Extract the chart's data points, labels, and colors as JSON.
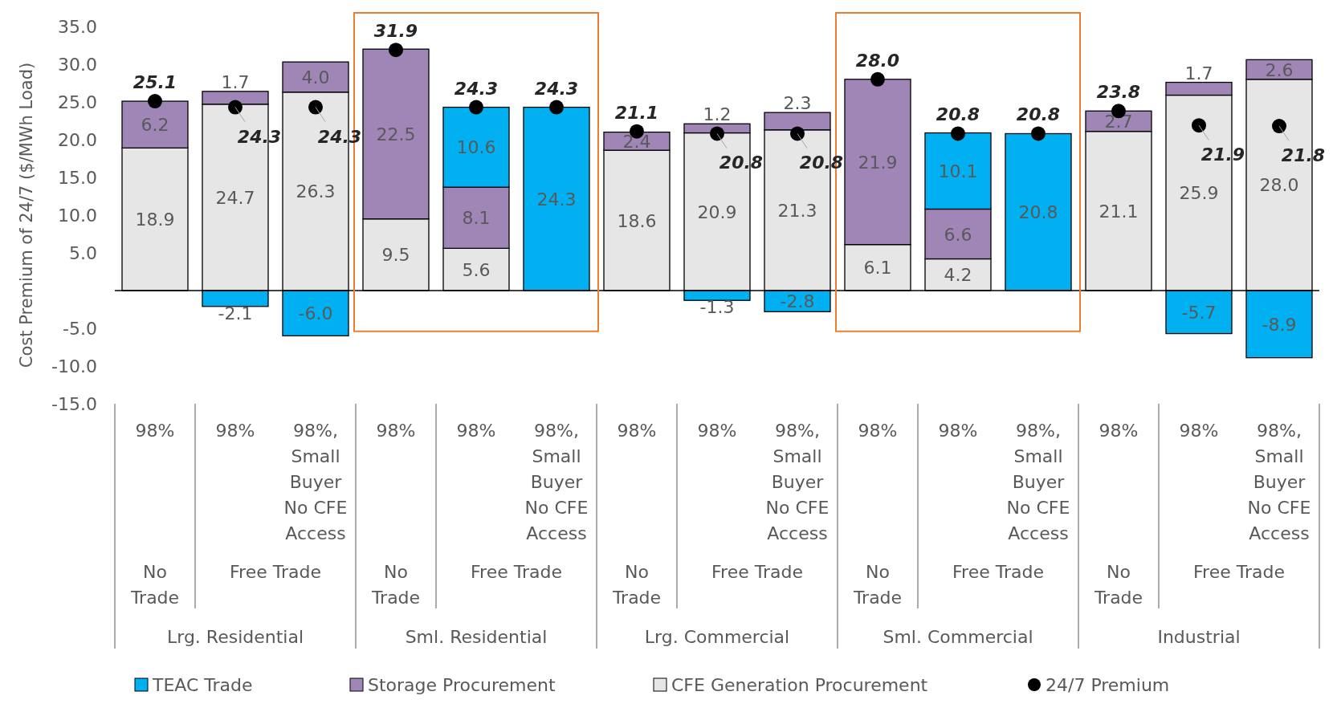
{
  "chart_data": {
    "type": "bar",
    "stacked": true,
    "ylabel": "Cost Premium of 24/7 ($/MWh Load)",
    "categories": [
      "98%",
      "98%",
      "98%, Small Buyer No CFE Access",
      "98%",
      "98%",
      "98%, Small Buyer No CFE Access",
      "98%",
      "98%",
      "98%, Small Buyer No CFE Access",
      "98%",
      "98%",
      "98%, Small Buyer No CFE Access",
      "98%",
      "98%",
      "98%, Small Buyer No CFE Access"
    ],
    "series": [
      {
        "name": "CFE Generation Procurement",
        "color": "#e7e6e6",
        "values": [
          18.9,
          24.7,
          26.3,
          9.5,
          5.6,
          null,
          18.6,
          20.9,
          21.3,
          6.1,
          4.2,
          null,
          21.1,
          25.9,
          28.0
        ],
        "value_labels": [
          "18.9",
          "24.7",
          "26.3",
          "9.5",
          "5.6",
          null,
          "18.6",
          "20.9",
          "21.3",
          "6.1",
          "4.2",
          null,
          "21.1",
          "25.9",
          "28.0"
        ]
      },
      {
        "name": "Storage Procurement",
        "color": "#a086b7",
        "values": [
          6.2,
          1.7,
          4.0,
          22.5,
          8.1,
          null,
          2.4,
          1.2,
          2.3,
          21.9,
          6.6,
          null,
          2.7,
          1.7,
          2.6
        ],
        "value_labels": [
          "6.2",
          "1.7",
          "4.0",
          "22.5",
          "8.1",
          null,
          "2.4",
          "1.2",
          "2.3",
          "21.9",
          "6.6",
          null,
          "2.7",
          "1.7",
          "2.6"
        ]
      },
      {
        "name": "TEAC Trade",
        "color": "#00b0f0",
        "values": [
          null,
          -2.1,
          -6.0,
          null,
          10.6,
          24.3,
          null,
          -1.3,
          -2.8,
          null,
          10.1,
          20.8,
          null,
          -5.7,
          -8.9
        ],
        "value_labels": [
          null,
          "-2.1",
          "-6.0",
          null,
          "10.6",
          "24.3",
          null,
          "-1.3",
          "-2.8",
          null,
          "10.1",
          "20.8",
          null,
          "-5.7",
          "-8.9"
        ]
      },
      {
        "name": "24/7 Premium",
        "type": "scatter",
        "color": "#000000",
        "values": [
          25.1,
          24.3,
          24.3,
          31.9,
          24.3,
          24.3,
          21.1,
          20.8,
          20.8,
          28.0,
          20.8,
          20.8,
          23.8,
          21.9,
          21.8
        ],
        "value_labels": [
          "25.1",
          "24.3",
          "24.3",
          "31.9",
          "24.3",
          "24.3",
          "21.1",
          "20.8",
          "20.8",
          "28.0",
          "20.8",
          "20.8",
          "23.8",
          "21.9",
          "21.8"
        ]
      }
    ],
    "ylim": [
      -15,
      35
    ],
    "yticks": [
      {
        "value": -15,
        "label": "-15.0"
      },
      {
        "value": -10,
        "label": "-10.0"
      },
      {
        "value": -5,
        "label": "-5.0"
      },
      {
        "value": 5,
        "label": "5.0"
      },
      {
        "value": 10,
        "label": "10.0"
      },
      {
        "value": 15,
        "label": "15.0"
      },
      {
        "value": 20,
        "label": "20.0"
      },
      {
        "value": 25,
        "label": "25.0"
      },
      {
        "value": 30,
        "label": "30.0"
      },
      {
        "value": 35,
        "label": "35.0"
      }
    ],
    "annotations": [
      "No Trade",
      "Free Trade",
      "No Trade",
      "Free Trade",
      "No Trade",
      "Free Trade",
      "No Trade",
      "Free Trade",
      "No Trade",
      "Free Trade",
      "Lrg. Residential",
      "Sml. Residential",
      "Lrg. Commercial",
      "Sml. Commercial",
      "Industrial"
    ],
    "legend": "bottom",
    "marker": "circle"
  }
}
